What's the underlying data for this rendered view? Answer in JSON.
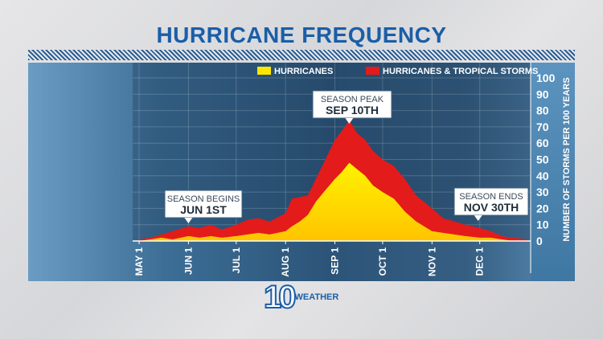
{
  "header": {
    "title": "HURRICANE FREQUENCY"
  },
  "logo": {
    "number": "10",
    "text": "WEATHER"
  },
  "chart_data": {
    "type": "area",
    "title": "HURRICANE FREQUENCY",
    "ylabel": "NUMBER OF STORMS PER 100 YEARS",
    "ylim": [
      0,
      100
    ],
    "yticks": [
      0,
      10,
      20,
      30,
      40,
      50,
      60,
      70,
      80,
      90,
      100
    ],
    "xtick_labels": [
      "MAY 1",
      "JUN 1",
      "JUL 1",
      "AUG 1",
      "SEP 1",
      "OCT 1",
      "NOV 1",
      "DEC 1"
    ],
    "xtick_dates": [
      "05-01",
      "06-01",
      "07-01",
      "08-01",
      "09-01",
      "10-01",
      "11-01",
      "12-01"
    ],
    "grid": true,
    "legend_position": "top",
    "x": [
      "05-01",
      "05-08",
      "05-15",
      "05-22",
      "06-01",
      "06-08",
      "06-15",
      "06-22",
      "07-01",
      "07-08",
      "07-15",
      "07-22",
      "08-01",
      "08-05",
      "08-10",
      "08-15",
      "08-20",
      "08-25",
      "09-01",
      "09-05",
      "09-10",
      "09-15",
      "09-20",
      "09-25",
      "10-01",
      "10-08",
      "10-15",
      "10-22",
      "11-01",
      "11-08",
      "11-15",
      "11-22",
      "12-01",
      "12-08",
      "12-15",
      "12-22",
      "12-31"
    ],
    "series": [
      {
        "name": "HURRICANES & TROPICAL STORMS",
        "color": "#e31b1b",
        "values": [
          1,
          2,
          4,
          6,
          9,
          8,
          10,
          7,
          10,
          13,
          14,
          12,
          17,
          26,
          27,
          28,
          38,
          48,
          62,
          67,
          74,
          66,
          62,
          55,
          50,
          46,
          38,
          28,
          20,
          14,
          12,
          10,
          8,
          6,
          3,
          2,
          1
        ]
      },
      {
        "name": "HURRICANES",
        "color": "#ffe800",
        "values": [
          0,
          1,
          2,
          1,
          3,
          2,
          3,
          2,
          3,
          4,
          5,
          4,
          6,
          9,
          12,
          16,
          24,
          30,
          38,
          42,
          48,
          44,
          40,
          34,
          30,
          26,
          18,
          12,
          6,
          5,
          4,
          3,
          2,
          2,
          1,
          0,
          0
        ]
      }
    ],
    "annotations": [
      {
        "date": "06-01",
        "line1": "SEASON BEGINS",
        "line2": "JUN 1ST"
      },
      {
        "date": "09-10",
        "line1": "SEASON PEAK",
        "line2": "SEP 10TH"
      },
      {
        "date": "11-30",
        "line1": "SEASON ENDS",
        "line2": "NOV 30TH"
      }
    ]
  }
}
